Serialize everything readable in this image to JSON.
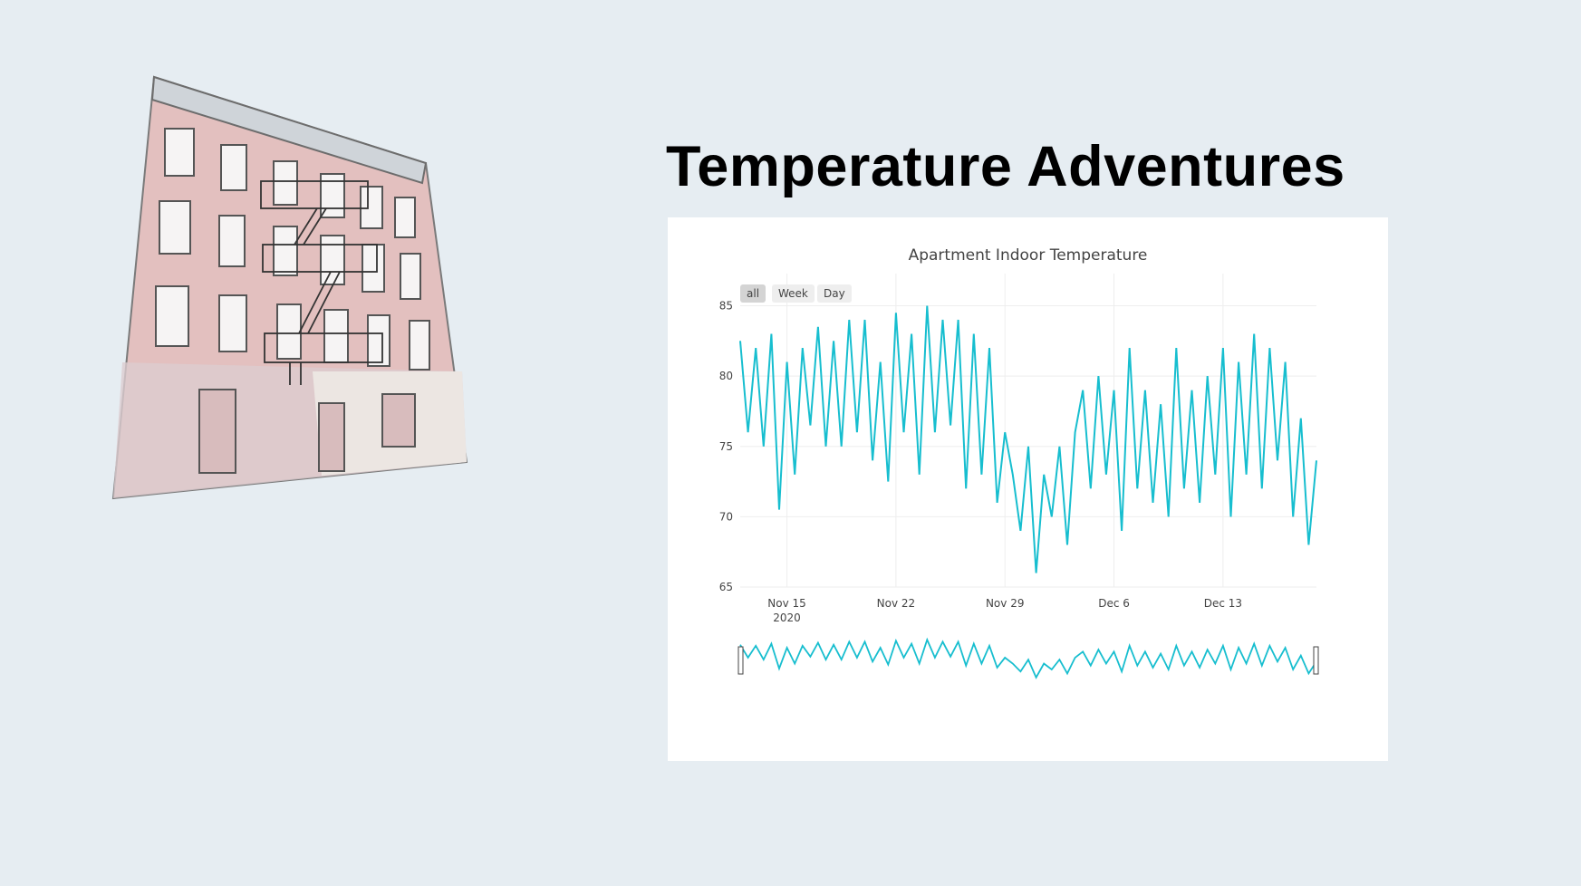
{
  "heading": "Temperature Adventures",
  "illustration": {
    "icon": "apartment-building-icon"
  },
  "range_buttons": [
    "all",
    "Week",
    "Day"
  ],
  "active_range": "all",
  "colors": {
    "line": "#17becf",
    "background": "#e6edf2",
    "card": "#ffffff",
    "grid": "#eeeeee"
  },
  "chart_data": {
    "type": "line",
    "title": "Apartment Indoor Temperature",
    "xlabel": "",
    "ylabel": "",
    "x_range": [
      "2020-11-12",
      "2020-12-19"
    ],
    "ylim": [
      65,
      86
    ],
    "y_ticks": [
      65,
      70,
      75,
      80,
      85
    ],
    "x_ticks": [
      {
        "date": "2020-11-15",
        "label": "Nov 15",
        "sublabel": "2020"
      },
      {
        "date": "2020-11-22",
        "label": "Nov 22",
        "sublabel": ""
      },
      {
        "date": "2020-11-29",
        "label": "Nov 29",
        "sublabel": ""
      },
      {
        "date": "2020-12-06",
        "label": "Dec 6",
        "sublabel": ""
      },
      {
        "date": "2020-12-13",
        "label": "Dec 13",
        "sublabel": ""
      }
    ],
    "grid": true,
    "rangeslider": true,
    "series": [
      {
        "x": [
          "2020-11-12",
          "2020-11-12T12:00",
          "2020-11-13",
          "2020-11-13T12:00",
          "2020-11-14",
          "2020-11-14T12:00",
          "2020-11-15",
          "2020-11-15T12:00",
          "2020-11-16",
          "2020-11-16T12:00",
          "2020-11-17",
          "2020-11-17T12:00",
          "2020-11-18",
          "2020-11-18T12:00",
          "2020-11-19",
          "2020-11-19T12:00",
          "2020-11-20",
          "2020-11-20T12:00",
          "2020-11-21",
          "2020-11-21T12:00",
          "2020-11-22",
          "2020-11-22T12:00",
          "2020-11-23",
          "2020-11-23T12:00",
          "2020-11-24",
          "2020-11-24T12:00",
          "2020-11-25",
          "2020-11-25T12:00",
          "2020-11-26",
          "2020-11-26T12:00",
          "2020-11-27",
          "2020-11-27T12:00",
          "2020-11-28",
          "2020-11-28T12:00",
          "2020-11-29",
          "2020-11-29T12:00",
          "2020-11-30",
          "2020-11-30T12:00",
          "2020-12-01",
          "2020-12-01T12:00",
          "2020-12-02",
          "2020-12-02T12:00",
          "2020-12-03",
          "2020-12-03T12:00",
          "2020-12-04",
          "2020-12-04T12:00",
          "2020-12-05",
          "2020-12-05T12:00",
          "2020-12-06",
          "2020-12-06T12:00",
          "2020-12-07",
          "2020-12-07T12:00",
          "2020-12-08",
          "2020-12-08T12:00",
          "2020-12-09",
          "2020-12-09T12:00",
          "2020-12-10",
          "2020-12-10T12:00",
          "2020-12-11",
          "2020-12-11T12:00",
          "2020-12-12",
          "2020-12-12T12:00",
          "2020-12-13",
          "2020-12-13T12:00",
          "2020-12-14",
          "2020-12-14T12:00",
          "2020-12-15",
          "2020-12-15T12:00",
          "2020-12-16",
          "2020-12-16T12:00",
          "2020-12-17",
          "2020-12-17T12:00",
          "2020-12-18",
          "2020-12-18T12:00",
          "2020-12-19"
        ],
        "y": [
          82.5,
          76,
          82,
          75,
          83,
          70.5,
          81,
          73,
          82,
          76.5,
          83.5,
          75,
          82.5,
          75,
          84,
          76,
          84,
          74,
          81,
          72.5,
          84.5,
          76,
          83,
          73,
          85,
          76,
          84,
          76.5,
          84,
          72,
          83,
          73,
          82,
          71,
          76,
          73,
          69,
          75,
          66,
          73,
          70,
          75,
          68,
          76,
          79,
          72,
          80,
          73,
          79,
          69,
          82,
          72,
          79,
          71,
          78,
          70,
          82,
          72,
          79,
          71,
          80,
          73,
          82,
          70,
          81,
          73,
          83,
          72,
          82,
          74,
          81,
          70,
          77,
          68,
          74
        ]
      }
    ]
  }
}
